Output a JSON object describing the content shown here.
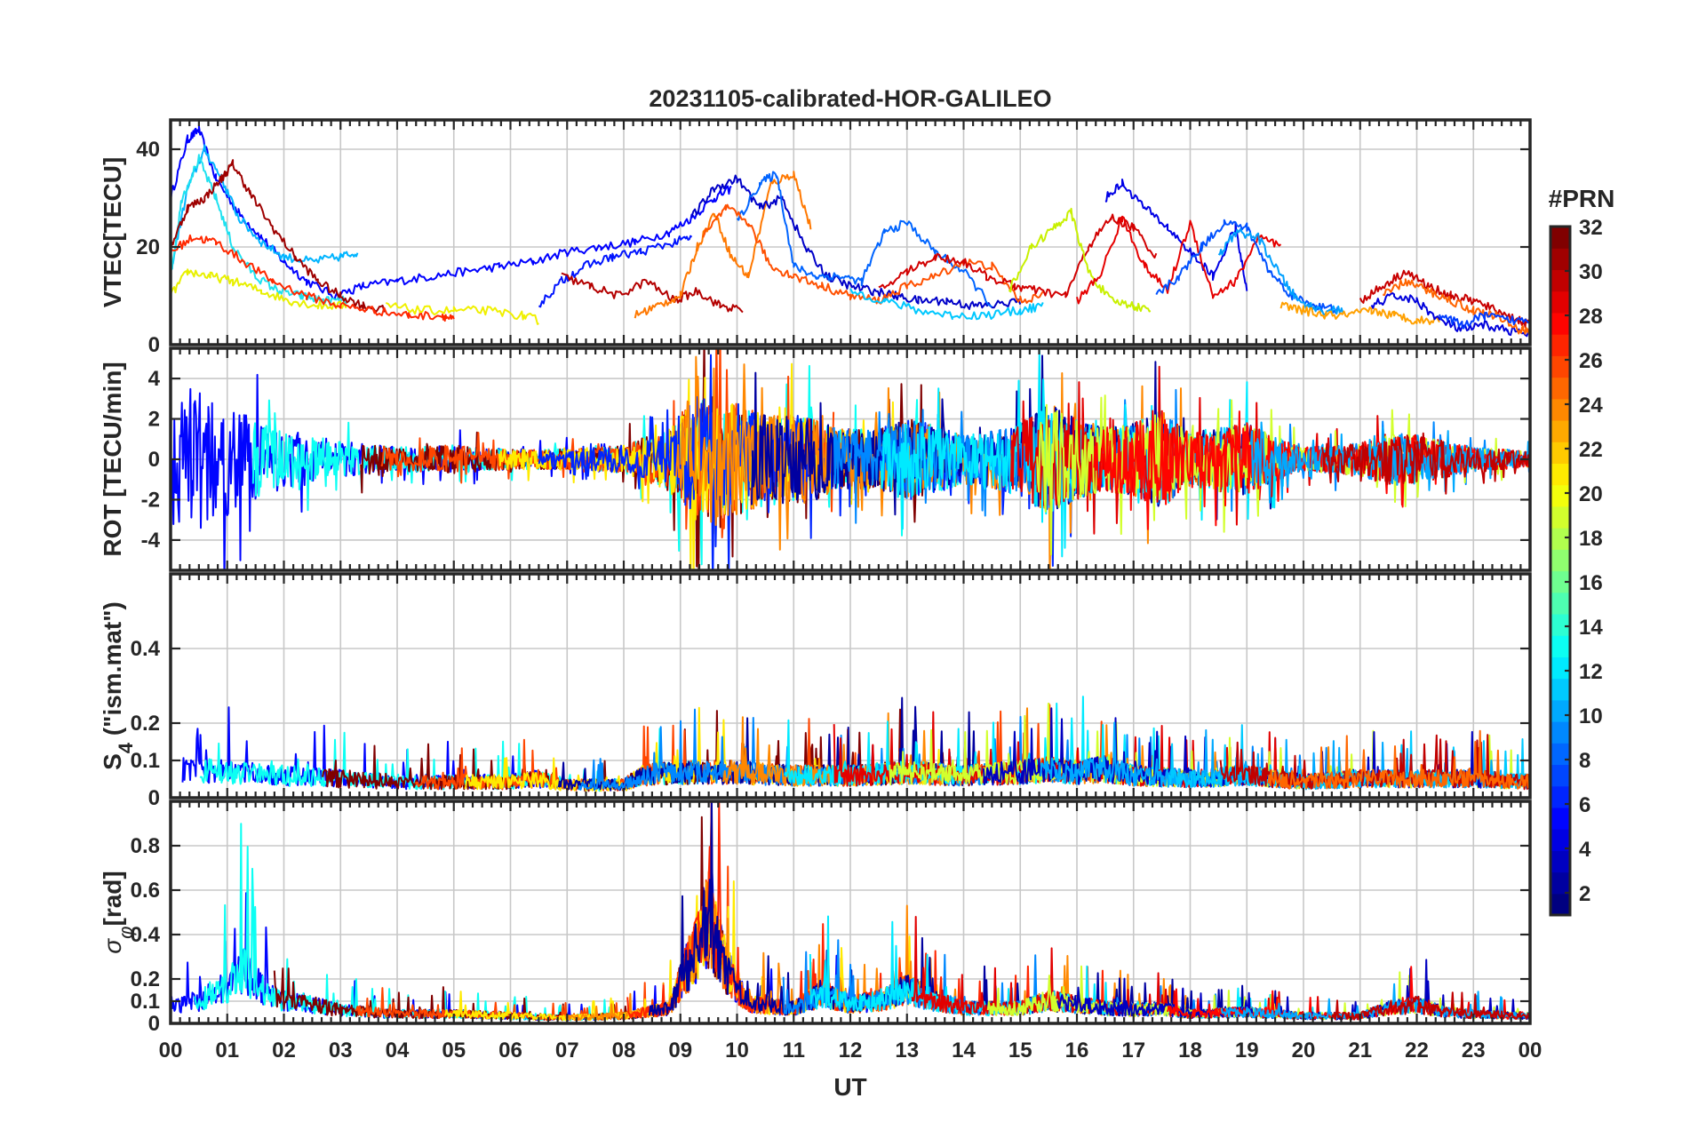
{
  "title": "20231105-calibrated-HOR-GALILEO",
  "xlabel": "UT",
  "x_ticks": [
    "00",
    "01",
    "02",
    "03",
    "04",
    "05",
    "06",
    "07",
    "08",
    "09",
    "10",
    "11",
    "12",
    "13",
    "14",
    "15",
    "16",
    "17",
    "18",
    "19",
    "20",
    "21",
    "22",
    "23",
    "00"
  ],
  "colorbar": {
    "title": "#PRN",
    "ticks": [
      "2",
      "4",
      "6",
      "8",
      "10",
      "12",
      "14",
      "16",
      "18",
      "20",
      "22",
      "24",
      "26",
      "28",
      "30",
      "32"
    ],
    "range": [
      1,
      32
    ],
    "colormap": "jet"
  },
  "chart_data": [
    {
      "type": "line",
      "panel": "VTEC",
      "title": "20231105-calibrated-HOR-GALILEO",
      "ylabel": "VTEC[TECU]",
      "ylim": [
        0,
        46
      ],
      "y_ticks": [
        "0",
        "20",
        "40"
      ],
      "xlim": [
        0,
        24
      ],
      "series": [
        {
          "prn": 5,
          "color": "#0000ff",
          "x": [
            0.0,
            0.3,
            0.5,
            0.8,
            1.2,
            1.6,
            2.0,
            2.4,
            2.9,
            3.4,
            4.0,
            4.6,
            5.2,
            5.8,
            6.4,
            7.0,
            7.6,
            8.2,
            8.8,
            9.2,
            9.6,
            9.9
          ],
          "y": [
            30,
            42,
            44,
            34,
            27,
            22,
            17,
            13,
            10,
            12,
            13,
            14,
            15,
            16,
            17,
            19,
            20,
            21,
            23,
            26,
            30,
            32
          ]
        },
        {
          "prn": 11,
          "color": "#00b4ff",
          "x": [
            0.0,
            0.3,
            0.6,
            0.9,
            1.2,
            1.6,
            2.0,
            2.5,
            3.0,
            3.3
          ],
          "y": [
            15,
            32,
            40,
            34,
            26,
            21,
            18,
            17,
            18,
            19
          ]
        },
        {
          "prn": 13,
          "color": "#1ee1f0",
          "x": [
            0.0,
            0.2,
            0.5,
            0.8,
            1.1,
            1.5,
            1.9,
            2.3,
            2.7,
            3.1
          ],
          "y": [
            14,
            30,
            38,
            30,
            20,
            14,
            11,
            10,
            9,
            9
          ]
        },
        {
          "prn": 20,
          "color": "#e8f000",
          "x": [
            0.0,
            0.3,
            0.7,
            1.1,
            1.6,
            2.1,
            2.6,
            3.1
          ],
          "y": [
            10,
            15,
            14,
            13,
            11,
            9,
            8,
            8
          ]
        },
        {
          "prn": 32,
          "color": "#9e0000",
          "x": [
            0.0,
            0.3,
            0.6,
            0.9,
            1.1,
            1.4,
            1.8,
            2.2,
            2.6,
            3.0,
            3.4,
            3.8
          ],
          "y": [
            20,
            28,
            30,
            34,
            37,
            31,
            24,
            18,
            13,
            10,
            8,
            7
          ]
        },
        {
          "prn": 26,
          "color": "#ff2800",
          "x": [
            0.0,
            0.4,
            0.8,
            1.3,
            1.8,
            2.4,
            3.0,
            3.6,
            4.2,
            4.8,
            5.0
          ],
          "y": [
            19,
            22,
            21,
            17,
            13,
            10,
            8,
            7,
            6,
            6,
            5
          ]
        },
        {
          "prn": 21,
          "color": "#f0f000",
          "x": [
            3.8,
            4.4,
            5.0,
            5.6,
            6.2,
            6.5
          ],
          "y": [
            8,
            7,
            7,
            7,
            6,
            5
          ]
        },
        {
          "prn": 6,
          "color": "#0014ff",
          "x": [
            6.5,
            6.9,
            7.3,
            7.8,
            8.3,
            8.9,
            9.2
          ],
          "y": [
            8,
            13,
            16,
            18,
            19,
            21,
            22
          ]
        },
        {
          "prn": 31,
          "color": "#b40000",
          "x": [
            6.9,
            7.4,
            7.9,
            8.4,
            8.9,
            9.3,
            9.7,
            10.1
          ],
          "y": [
            14,
            12,
            10,
            13,
            9,
            11,
            8,
            7
          ]
        },
        {
          "prn": 24,
          "color": "#ff7800",
          "x": [
            8.2,
            8.6,
            9.0,
            9.3,
            9.6,
            9.9,
            10.2,
            10.6,
            11.0,
            11.3
          ],
          "y": [
            6,
            8,
            10,
            20,
            27,
            18,
            14,
            33,
            35,
            24
          ]
        },
        {
          "prn": 2,
          "color": "#0000c8",
          "x": [
            9.2,
            9.6,
            10.0,
            10.4,
            10.8,
            11.2,
            11.6,
            12.0,
            12.4,
            12.8,
            13.2,
            13.7,
            14.1,
            14.5,
            15.0
          ],
          "y": [
            26,
            32,
            34,
            28,
            30,
            20,
            14,
            12,
            11,
            10,
            9,
            9,
            8,
            8,
            9
          ]
        },
        {
          "prn": 9,
          "color": "#0064ff",
          "x": [
            10.0,
            10.4,
            10.7,
            11.0,
            11.4,
            11.8,
            12.2,
            12.6,
            13.0,
            13.5,
            14.0,
            14.5
          ],
          "y": [
            25,
            33,
            35,
            16,
            14,
            14,
            13,
            23,
            25,
            19,
            15,
            8
          ]
        },
        {
          "prn": 27,
          "color": "#ff5000",
          "x": [
            9.4,
            9.8,
            10.2,
            10.6,
            11.0,
            11.5,
            12.0,
            12.5,
            13.0,
            13.5,
            14.0,
            14.5,
            15.0,
            15.4
          ],
          "y": [
            22,
            28,
            25,
            16,
            14,
            12,
            10,
            9,
            12,
            14,
            17,
            16,
            9,
            10
          ]
        },
        {
          "prn": 12,
          "color": "#00c8ff",
          "x": [
            12.0,
            12.6,
            13.2,
            13.8,
            14.4,
            15.0,
            15.4
          ],
          "y": [
            11,
            9,
            7,
            6,
            6,
            7,
            8
          ]
        },
        {
          "prn": 29,
          "color": "#d20000",
          "x": [
            12.5,
            13.0,
            13.5,
            14.0,
            14.4,
            14.9,
            15.3,
            15.8,
            16.2,
            16.6,
            17.0,
            17.4
          ],
          "y": [
            11,
            15,
            18,
            17,
            14,
            12,
            11,
            10,
            20,
            26,
            24,
            18
          ]
        },
        {
          "prn": 19,
          "color": "#c8f000",
          "x": [
            14.8,
            15.2,
            15.6,
            15.9,
            16.2,
            16.6,
            17.0,
            17.3
          ],
          "y": [
            11,
            20,
            24,
            27,
            15,
            9,
            8,
            7
          ]
        },
        {
          "prn": 3,
          "color": "#0000e6",
          "x": [
            16.5,
            16.8,
            17.2,
            17.6,
            18.0,
            18.4,
            18.8,
            19.0
          ],
          "y": [
            30,
            33,
            28,
            24,
            19,
            14,
            24,
            11
          ]
        },
        {
          "prn": 28,
          "color": "#e60000",
          "x": [
            16.0,
            16.4,
            16.8,
            17.2,
            17.6,
            18.0,
            18.4,
            18.8,
            19.2,
            19.6
          ],
          "y": [
            9,
            14,
            26,
            16,
            11,
            25,
            10,
            13,
            22,
            20
          ]
        },
        {
          "prn": 8,
          "color": "#0050ff",
          "x": [
            17.4,
            17.8,
            18.2,
            18.6,
            19.0,
            19.4,
            19.8,
            20.2,
            20.6
          ],
          "y": [
            10,
            14,
            20,
            25,
            24,
            15,
            10,
            8,
            7
          ]
        },
        {
          "prn": 10,
          "color": "#00a0ff",
          "x": [
            18.5,
            18.8,
            19.2,
            19.6,
            19.9,
            20.3,
            20.7
          ],
          "y": [
            18,
            23,
            22,
            14,
            9,
            7,
            7
          ]
        },
        {
          "prn": 23,
          "color": "#ffa000",
          "x": [
            19.6,
            20.0,
            20.4,
            20.8,
            21.2,
            21.6,
            22.0,
            22.4
          ],
          "y": [
            8,
            7,
            6,
            6,
            7,
            6,
            5,
            5
          ]
        },
        {
          "prn": 30,
          "color": "#c80000",
          "x": [
            21.0,
            21.4,
            21.8,
            22.2,
            22.6,
            23.0,
            23.4,
            23.8,
            24.0
          ],
          "y": [
            9,
            12,
            15,
            12,
            10,
            9,
            7,
            5,
            4
          ]
        },
        {
          "prn": 4,
          "color": "#0000dc",
          "x": [
            21.2,
            21.6,
            22.0,
            22.4,
            22.8,
            23.2,
            23.6,
            24.0
          ],
          "y": [
            8,
            10,
            9,
            5,
            3,
            4,
            3,
            2
          ]
        },
        {
          "prn": 25,
          "color": "#ff6400",
          "x": [
            21.4,
            21.8,
            22.2,
            22.6,
            23.0,
            23.4,
            23.8,
            24.0
          ],
          "y": [
            10,
            13,
            11,
            9,
            7,
            6,
            3,
            3
          ]
        },
        {
          "prn": 7,
          "color": "#003cff",
          "x": [
            22.4,
            22.8,
            23.2,
            23.6,
            24.0
          ],
          "y": [
            6,
            4,
            6,
            5,
            5
          ]
        }
      ]
    },
    {
      "type": "line",
      "panel": "ROT",
      "ylabel": "ROT [TECU/min]",
      "ylim": [
        -5.5,
        5.5
      ],
      "y_ticks": [
        "-4",
        "-2",
        "0",
        "2",
        "4"
      ],
      "xlim": [
        0,
        24
      ],
      "series_prn": [
        5,
        13,
        32,
        26,
        21,
        6,
        24,
        2,
        9,
        12,
        29,
        19,
        28,
        10,
        30
      ],
      "activity": {
        "hours": [
          0,
          0.5,
          1,
          1.5,
          2,
          3,
          4,
          5,
          6,
          7,
          8,
          8.8,
          9.3,
          9.8,
          10.5,
          11.2,
          11.8,
          12.5,
          13,
          13.5,
          14,
          15,
          15.5,
          16,
          16.5,
          17,
          17.5,
          18,
          18.5,
          19,
          19.5,
          20,
          21,
          21.5,
          22,
          22.5,
          23,
          24
        ],
        "amplitude": [
          3.5,
          3.5,
          2.8,
          2.0,
          1.5,
          0.9,
          0.6,
          0.7,
          0.5,
          0.5,
          0.7,
          1.6,
          3.2,
          3.0,
          2.2,
          2.2,
          1.5,
          1.5,
          2.0,
          1.7,
          1.2,
          1.8,
          2.8,
          2.0,
          1.6,
          1.8,
          2.4,
          1.3,
          1.6,
          1.8,
          1.1,
          0.6,
          0.8,
          1.3,
          1.2,
          0.9,
          0.6,
          0.4
        ]
      }
    },
    {
      "type": "line",
      "panel": "S4",
      "ylabel": "S₄ (\"ism.mat\")",
      "ylim": [
        0,
        0.6
      ],
      "y_ticks": [
        "0",
        "0.1",
        "0.2",
        "0.4"
      ],
      "xlim": [
        0,
        24
      ],
      "series_prn": [
        5,
        13,
        32,
        26,
        21,
        2,
        9,
        24,
        12,
        29,
        19,
        3,
        10,
        11,
        30,
        25
      ],
      "activity": {
        "hours": [
          0,
          1,
          2,
          3,
          4,
          5,
          6,
          6.5,
          7,
          8,
          8.3,
          9,
          10,
          11,
          12,
          13,
          14,
          15,
          15.5,
          16,
          16.5,
          17,
          18,
          19,
          20,
          21,
          22,
          23,
          24
        ],
        "baseline": [
          0.09,
          0.08,
          0.07,
          0.06,
          0.05,
          0.05,
          0.05,
          0.06,
          0.04,
          0.04,
          0.07,
          0.08,
          0.08,
          0.07,
          0.07,
          0.08,
          0.07,
          0.08,
          0.09,
          0.08,
          0.09,
          0.07,
          0.06,
          0.07,
          0.05,
          0.06,
          0.06,
          0.06,
          0.05
        ]
      }
    },
    {
      "type": "line",
      "panel": "sigma_phi",
      "ylabel": "σφ [rad]",
      "ylim": [
        0,
        1.0
      ],
      "y_ticks": [
        "0",
        "0.1",
        "0.2",
        "0.4",
        "0.6",
        "0.8"
      ],
      "xlim": [
        0,
        24
      ],
      "series_prn": [
        5,
        13,
        32,
        26,
        21,
        24,
        27,
        2,
        9,
        12,
        29,
        19,
        3,
        28,
        10,
        30
      ],
      "activity": {
        "hours": [
          0,
          0.5,
          1,
          1.3,
          1.7,
          2,
          2.5,
          3,
          4,
          5,
          6,
          7,
          8,
          8.8,
          9.2,
          9.5,
          9.8,
          10.2,
          11,
          11.5,
          12,
          12.5,
          13,
          13.5,
          14,
          15,
          15.5,
          16,
          16.5,
          17,
          17.5,
          18,
          19,
          20,
          21,
          21.5,
          22,
          22.5,
          23,
          24
        ],
        "baseline": [
          0.1,
          0.12,
          0.2,
          0.28,
          0.15,
          0.12,
          0.1,
          0.07,
          0.05,
          0.05,
          0.04,
          0.03,
          0.04,
          0.08,
          0.35,
          0.55,
          0.3,
          0.1,
          0.08,
          0.16,
          0.1,
          0.12,
          0.18,
          0.12,
          0.08,
          0.08,
          0.12,
          0.1,
          0.08,
          0.07,
          0.08,
          0.05,
          0.06,
          0.04,
          0.04,
          0.08,
          0.1,
          0.06,
          0.05,
          0.04
        ]
      }
    }
  ],
  "panels": [
    {
      "id": "vtec",
      "ylabel": "VTEC[TECU]",
      "ylim": [
        0,
        46
      ],
      "ticks": [
        [
          0,
          "0"
        ],
        [
          20,
          "20"
        ],
        [
          40,
          "40"
        ]
      ]
    },
    {
      "id": "rot",
      "ylabel": "ROT [TECU/min]",
      "ylim": [
        -5.5,
        5.5
      ],
      "ticks": [
        [
          -4,
          "-4"
        ],
        [
          -2,
          "-2"
        ],
        [
          0,
          "0"
        ],
        [
          2,
          "2"
        ],
        [
          4,
          "4"
        ]
      ]
    },
    {
      "id": "s4",
      "ylabel_main": "S",
      "ylabel_sub": "4",
      "ylabel_rest": " (\"ism.mat\")",
      "ylim": [
        0,
        0.6
      ],
      "ticks": [
        [
          0,
          "0"
        ],
        [
          0.1,
          "0.1"
        ],
        [
          0.2,
          "0.2"
        ],
        [
          0.4,
          "0.4"
        ]
      ]
    },
    {
      "id": "sig",
      "ylabel_main": "σ",
      "ylabel_sub": "φ",
      "ylabel_rest": "[rad]",
      "ylim": [
        0,
        1.0
      ],
      "ticks": [
        [
          0,
          "0"
        ],
        [
          0.1,
          "0.1"
        ],
        [
          0.2,
          "0.2"
        ],
        [
          0.4,
          "0.4"
        ],
        [
          0.6,
          "0.6"
        ],
        [
          0.8,
          "0.8"
        ]
      ]
    }
  ]
}
